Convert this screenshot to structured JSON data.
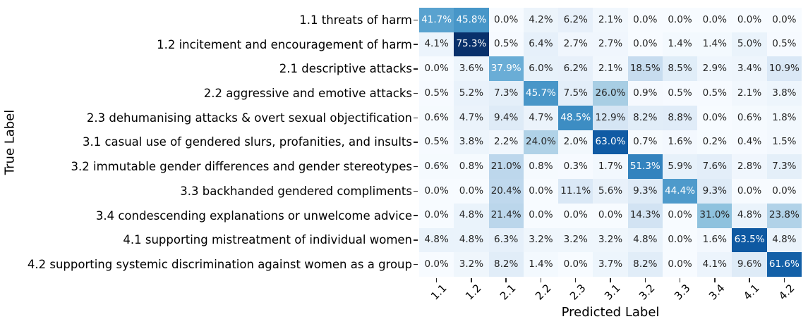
{
  "chart_data": {
    "type": "heatmap",
    "title": "",
    "xlabel": "Predicted Label",
    "ylabel": "True Label",
    "row_labels": [
      "1.1 threats of harm",
      "1.2 incitement and encouragement of harm",
      "2.1 descriptive attacks",
      "2.2 aggressive and emotive attacks",
      "2.3 dehumanising attacks & overt sexual objectification",
      "3.1 casual use of gendered slurs, profanities, and insults",
      "3.2 immutable gender differences and gender stereotypes",
      "3.3 backhanded gendered compliments",
      "3.4 condescending explanations or unwelcome advice",
      "4.1 supporting mistreatment of individual women",
      "4.2 supporting systemic discrimination against women as a group"
    ],
    "col_labels": [
      "1.1",
      "1.2",
      "2.1",
      "2.2",
      "2.3",
      "3.1",
      "3.2",
      "3.3",
      "3.4",
      "4.1",
      "4.2"
    ],
    "values": [
      [
        41.7,
        45.8,
        0.0,
        4.2,
        6.2,
        2.1,
        0.0,
        0.0,
        0.0,
        0.0,
        0.0
      ],
      [
        4.1,
        75.3,
        0.5,
        6.4,
        2.7,
        2.7,
        0.0,
        1.4,
        1.4,
        5.0,
        0.5
      ],
      [
        0.0,
        3.6,
        37.9,
        6.0,
        6.2,
        2.1,
        18.5,
        8.5,
        2.9,
        3.4,
        10.9
      ],
      [
        0.5,
        5.2,
        7.3,
        45.7,
        7.5,
        26.0,
        0.9,
        0.5,
        0.5,
        2.1,
        3.8
      ],
      [
        0.6,
        4.7,
        9.4,
        4.7,
        48.5,
        12.9,
        8.2,
        8.8,
        0.0,
        0.6,
        1.8
      ],
      [
        0.5,
        3.8,
        2.2,
        24.0,
        2.0,
        63.0,
        0.7,
        1.6,
        0.2,
        0.4,
        1.5
      ],
      [
        0.6,
        0.8,
        21.0,
        0.8,
        0.3,
        1.7,
        51.3,
        5.9,
        7.6,
        2.8,
        7.3
      ],
      [
        0.0,
        0.0,
        20.4,
        0.0,
        11.1,
        5.6,
        9.3,
        44.4,
        9.3,
        0.0,
        0.0
      ],
      [
        0.0,
        4.8,
        21.4,
        0.0,
        0.0,
        0.0,
        14.3,
        0.0,
        31.0,
        4.8,
        23.8
      ],
      [
        4.8,
        4.8,
        6.3,
        3.2,
        3.2,
        3.2,
        4.8,
        0.0,
        1.6,
        63.5,
        4.8
      ],
      [
        0.0,
        3.2,
        8.2,
        1.4,
        0.0,
        3.7,
        8.2,
        0.0,
        4.1,
        9.6,
        61.6
      ]
    ],
    "value_suffix": "%",
    "annotation_decimals": 1,
    "colormap": {
      "name": "Blues",
      "stops": [
        "#f7fbff",
        "#deebf7",
        "#c6dbef",
        "#9ecae1",
        "#6baed6",
        "#4292c6",
        "#2171b5",
        "#08519c",
        "#08306b"
      ],
      "vmin": 0,
      "vmax": 75.3
    },
    "annotation_text_light": "#ffffff",
    "annotation_text_dark": "#262626",
    "axis_text_color": "#000000",
    "tick_color": "#262626",
    "grid": false,
    "legend": "none",
    "background": "#ffffff"
  }
}
